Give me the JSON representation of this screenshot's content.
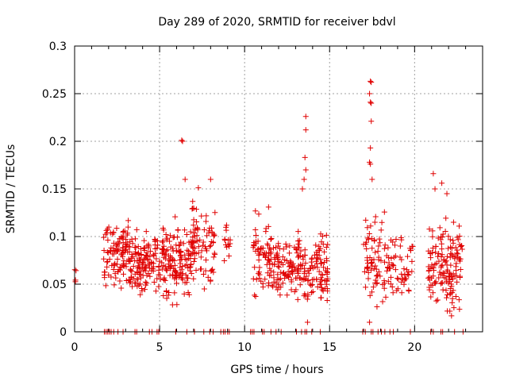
{
  "chart_data": {
    "type": "scatter",
    "title": "Day 289 of 2020, SRMTID for receiver bdvl",
    "xlabel": "GPS time / hours",
    "ylabel": "SRMTID / TECUs",
    "xlim": [
      0,
      24
    ],
    "ylim": [
      0,
      0.3
    ],
    "xticks": [
      0,
      5,
      10,
      15,
      20
    ],
    "xtick_labels": [
      "0",
      "5",
      "10",
      "15",
      "20"
    ],
    "yticks": [
      0,
      0.05,
      0.1,
      0.15,
      0.2,
      0.25,
      0.3
    ],
    "ytick_labels": [
      "0",
      "0.05",
      "0.1",
      "0.15",
      "0.2",
      "0.25",
      "0.3"
    ],
    "grid": true,
    "marker": "+",
    "colors": {
      "points": "#e00000",
      "grid": "#a0a0a0",
      "axis": "#000000"
    },
    "clusters": [
      {
        "x_range": [
          0.0,
          0.1
        ],
        "y_range": [
          0.045,
          0.072
        ],
        "count": 4
      },
      {
        "x_range": [
          1.7,
          3.2
        ],
        "y_range": [
          0.035,
          0.125
        ],
        "count": 110
      },
      {
        "x_range": [
          3.2,
          5.0
        ],
        "y_range": [
          0.025,
          0.115
        ],
        "count": 130
      },
      {
        "x_range": [
          5.0,
          6.9
        ],
        "y_range": [
          0.02,
          0.13
        ],
        "count": 150
      },
      {
        "x_range": [
          6.9,
          8.3
        ],
        "y_range": [
          0.025,
          0.16
        ],
        "count": 80
      },
      {
        "x_range": [
          8.8,
          9.2
        ],
        "y_range": [
          0.06,
          0.12
        ],
        "count": 14
      },
      {
        "x_range": [
          10.5,
          11.6
        ],
        "y_range": [
          0.025,
          0.14
        ],
        "count": 70
      },
      {
        "x_range": [
          11.6,
          13.0
        ],
        "y_range": [
          0.025,
          0.105
        ],
        "count": 80
      },
      {
        "x_range": [
          13.0,
          14.9
        ],
        "y_range": [
          0.01,
          0.115
        ],
        "count": 130
      },
      {
        "x_range": [
          17.0,
          18.3
        ],
        "y_range": [
          0.01,
          0.15
        ],
        "count": 70
      },
      {
        "x_range": [
          18.3,
          19.9
        ],
        "y_range": [
          0.02,
          0.11
        ],
        "count": 60
      },
      {
        "x_range": [
          20.8,
          22.8
        ],
        "y_range": [
          0.01,
          0.13
        ],
        "count": 150
      }
    ],
    "outliers": [
      {
        "x": 6.3,
        "y": 0.201
      },
      {
        "x": 6.35,
        "y": 0.2
      },
      {
        "x": 6.5,
        "y": 0.16
      },
      {
        "x": 8.0,
        "y": 0.16
      },
      {
        "x": 13.6,
        "y": 0.226
      },
      {
        "x": 13.6,
        "y": 0.212
      },
      {
        "x": 13.55,
        "y": 0.183
      },
      {
        "x": 13.6,
        "y": 0.17
      },
      {
        "x": 13.5,
        "y": 0.16
      },
      {
        "x": 13.4,
        "y": 0.15
      },
      {
        "x": 17.4,
        "y": 0.263
      },
      {
        "x": 17.45,
        "y": 0.262
      },
      {
        "x": 17.35,
        "y": 0.25
      },
      {
        "x": 17.4,
        "y": 0.241
      },
      {
        "x": 17.45,
        "y": 0.24
      },
      {
        "x": 17.45,
        "y": 0.221
      },
      {
        "x": 17.4,
        "y": 0.193
      },
      {
        "x": 17.35,
        "y": 0.178
      },
      {
        "x": 17.4,
        "y": 0.176
      },
      {
        "x": 17.5,
        "y": 0.16
      },
      {
        "x": 21.1,
        "y": 0.166
      },
      {
        "x": 21.6,
        "y": 0.156
      },
      {
        "x": 21.2,
        "y": 0.15
      },
      {
        "x": 21.9,
        "y": 0.145
      },
      {
        "x": 13.7,
        "y": 0.01
      },
      {
        "x": 17.35,
        "y": 0.01
      }
    ],
    "baseline_points": {
      "y": 0,
      "x": [
        1.75,
        1.85,
        1.95,
        2.05,
        2.15,
        2.3,
        2.55,
        2.85,
        3.55,
        3.65,
        4.4,
        4.55,
        4.85,
        4.95,
        5.95,
        6.6,
        7.05,
        7.6,
        7.95,
        8.15,
        8.6,
        8.75,
        8.85,
        9.0,
        9.1,
        10.35,
        10.45,
        10.55,
        11.05,
        11.15,
        11.55,
        11.85,
        12.15,
        13.05,
        13.35,
        13.55,
        13.65,
        13.95,
        14.45,
        16.95,
        17.1,
        17.45,
        17.55,
        17.85,
        18.05,
        18.25,
        18.55,
        18.75,
        19.75,
        20.95,
        21.1,
        21.55,
        21.65,
        22.35,
        22.85
      ]
    }
  }
}
